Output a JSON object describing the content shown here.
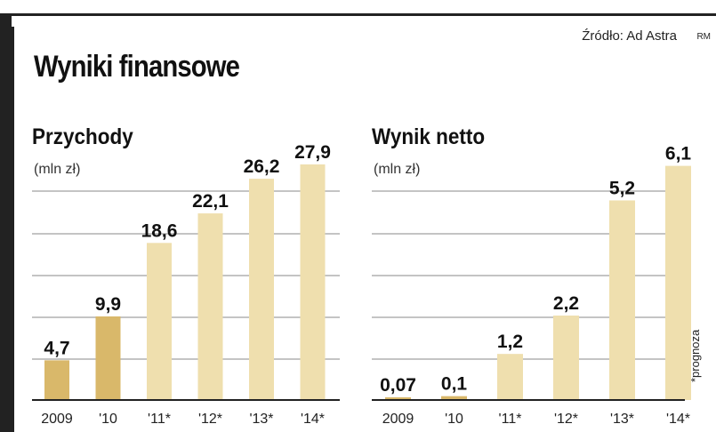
{
  "header": {
    "source": "Źródło: Ad Astra",
    "credit": "RM",
    "title": "Wyniki finansowe"
  },
  "footnote": "*prognoza",
  "colors": {
    "actual": "#d9b86a",
    "forecast": "#efdfae",
    "frame": "#222222"
  },
  "chart_data": [
    {
      "type": "bar",
      "title": "Przychody",
      "unit": "(mln zł)",
      "categories": [
        "2009",
        "'10",
        "'11*",
        "'12*",
        "'13*",
        "'14*"
      ],
      "values": [
        4.7,
        9.9,
        18.6,
        22.1,
        26.2,
        27.9
      ],
      "value_labels": [
        "4,7",
        "9,9",
        "18,6",
        "22,1",
        "26,2",
        "27,9"
      ],
      "forecast": [
        false,
        false,
        true,
        true,
        true,
        true
      ],
      "ylim": [
        0,
        30
      ],
      "grid": true
    },
    {
      "type": "bar",
      "title": "Wynik netto",
      "unit": "(mln zł)",
      "categories": [
        "2009",
        "'10",
        "'11*",
        "'12*",
        "'13*",
        "'14*"
      ],
      "values": [
        0.07,
        0.1,
        1.2,
        2.2,
        5.2,
        6.1
      ],
      "value_labels": [
        "0,07",
        "0,1",
        "1,2",
        "2,2",
        "5,2",
        "6,1"
      ],
      "forecast": [
        false,
        false,
        true,
        true,
        true,
        true
      ],
      "ylim": [
        0,
        6.6
      ],
      "grid": true
    }
  ]
}
